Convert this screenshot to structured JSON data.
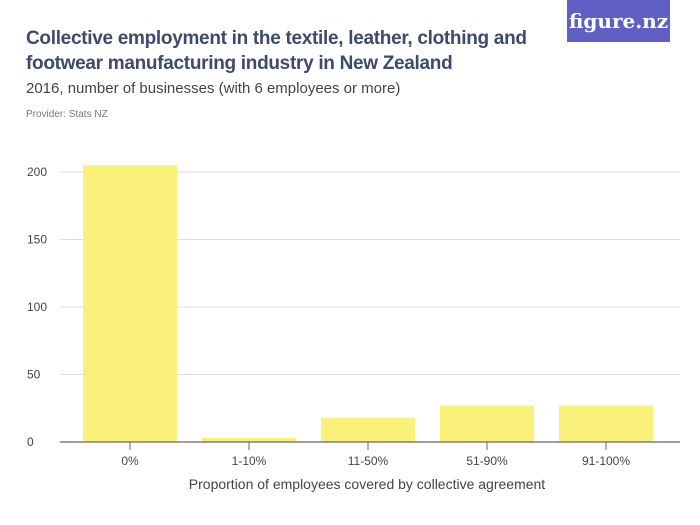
{
  "header": {
    "title": "Collective employment in the textile, leather, clothing and footwear manufacturing industry in New Zealand",
    "subtitle": "2016, number of businesses (with 6 employees or more)",
    "provider": "Provider: Stats NZ",
    "logo": "figure.nz"
  },
  "colors": {
    "bar": "#f9f17a",
    "logo_bg": "#5f5fc4",
    "title": "#3d4a6b"
  },
  "chart_data": {
    "type": "bar",
    "title": "Collective employment in the textile, leather, clothing and footwear manufacturing industry in New Zealand",
    "xlabel": "Proportion of employees covered by collective agreement",
    "ylabel": "",
    "categories": [
      "0%",
      "1-10%",
      "11-50%",
      "51-90%",
      "91-100%"
    ],
    "values": [
      205,
      3,
      18,
      27,
      27
    ],
    "ylim": [
      0,
      200
    ],
    "yticks": [
      0,
      50,
      100,
      150,
      200
    ],
    "grid": true
  }
}
